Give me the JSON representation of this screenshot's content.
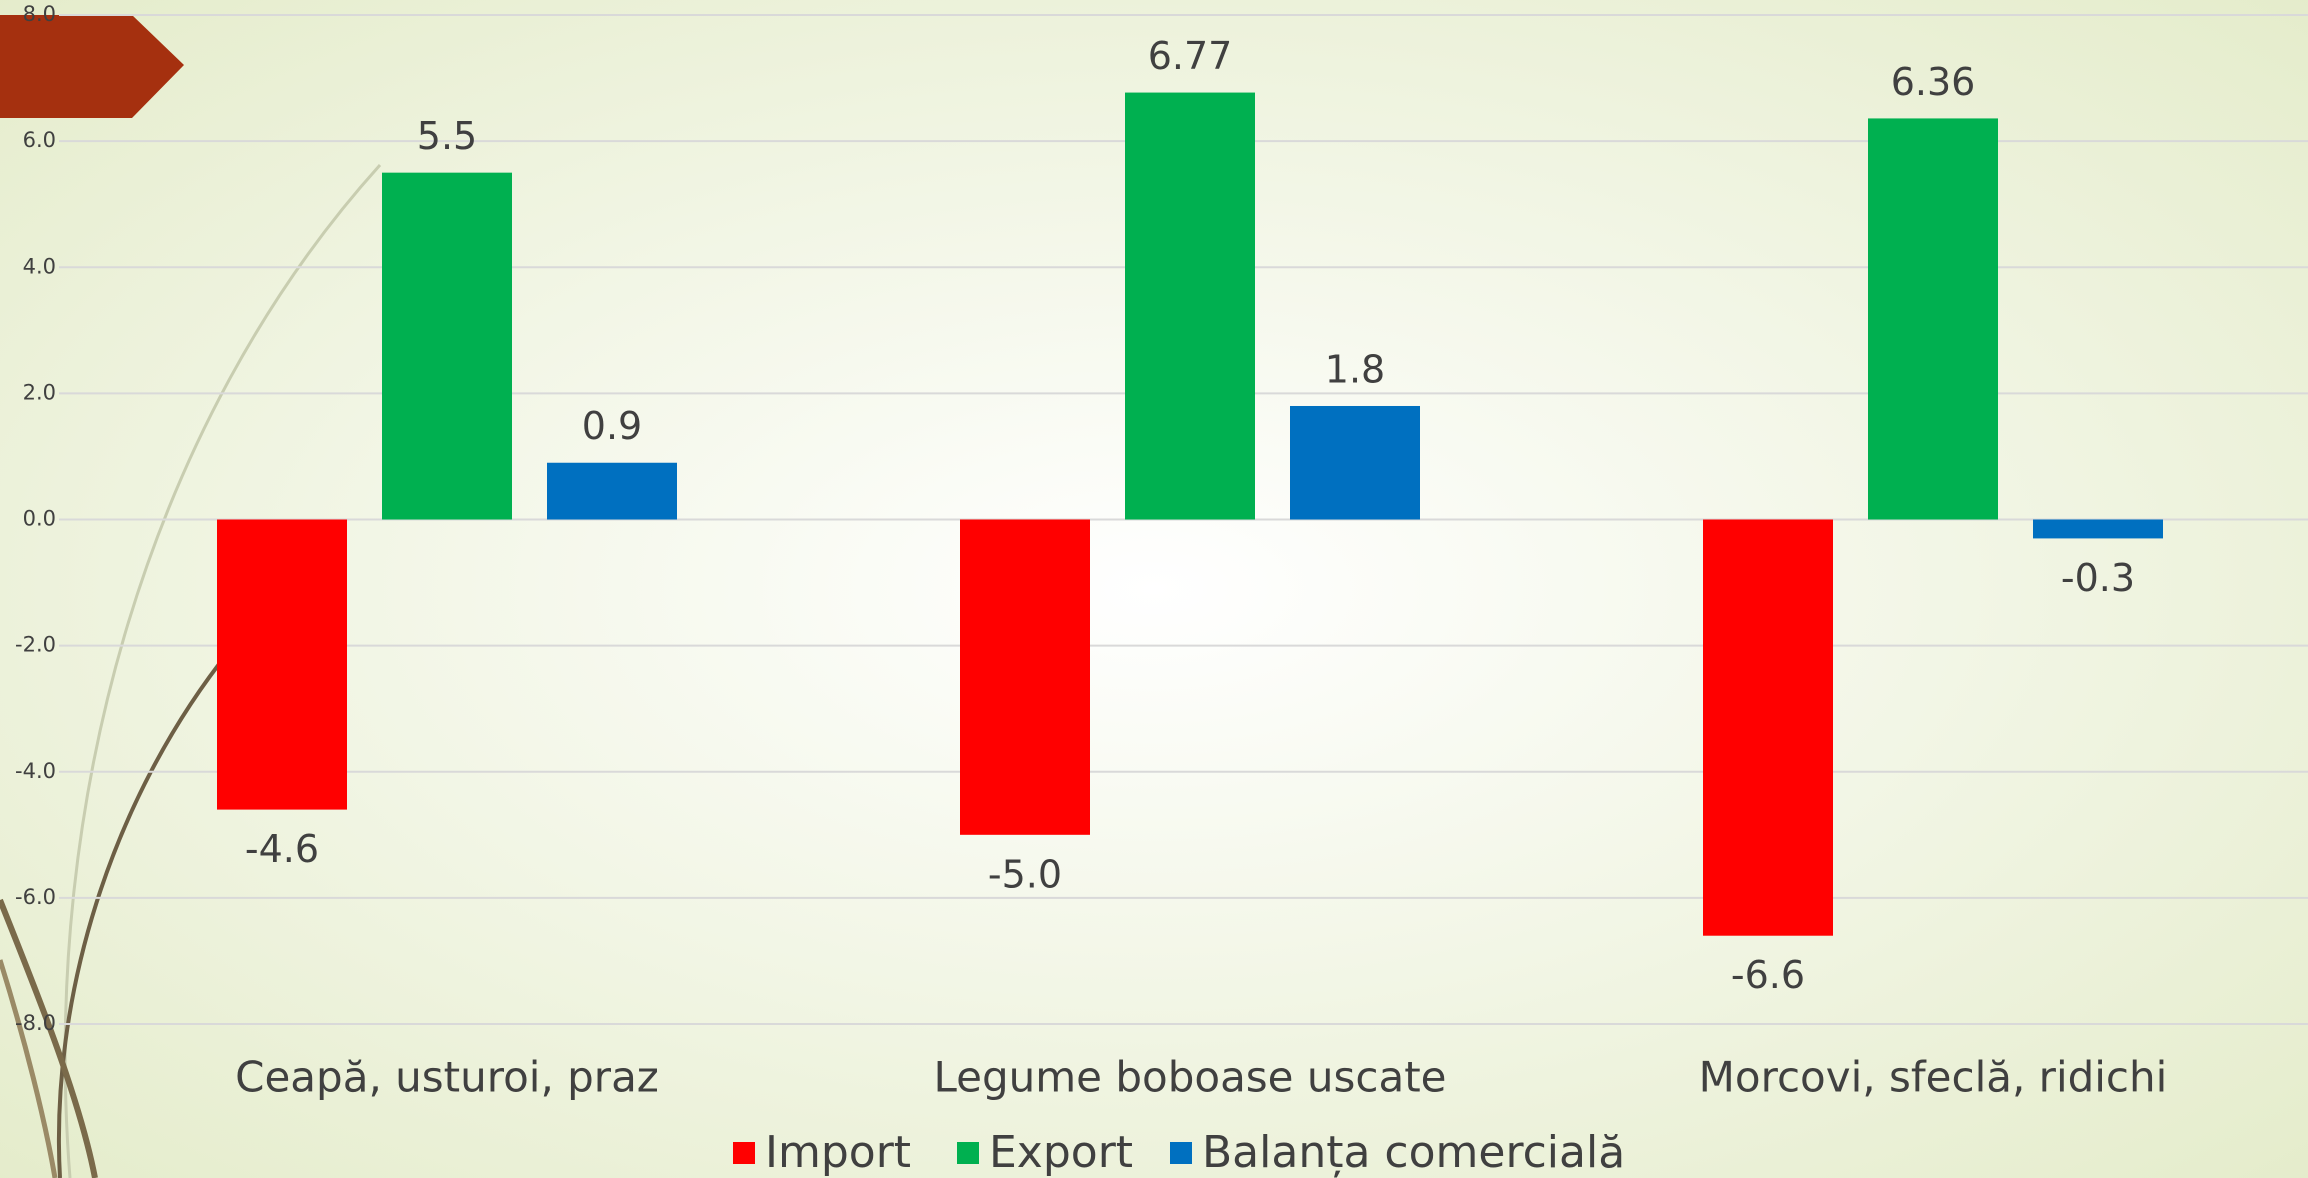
{
  "chart_data": {
    "type": "bar",
    "categories": [
      "Ceapă, usturoi, praz",
      "Legume boboase uscate",
      "Morcovi, sfeclă, ridichi"
    ],
    "series": [
      {
        "name": "Import",
        "color": "#ff0000",
        "values": [
          -4.6,
          -5.0,
          -6.6
        ],
        "value_labels": [
          "-4.6",
          "-5.0",
          "-6.6"
        ]
      },
      {
        "name": "Export",
        "color": "#00b050",
        "values": [
          5.5,
          6.77,
          6.36
        ]
      },
      {
        "name": "Balanța comercială",
        "color": "#0070c0",
        "values": [
          0.9,
          1.8,
          -0.3
        ]
      }
    ],
    "ylim": [
      -8,
      8
    ],
    "yticks": [
      {
        "value": -8,
        "label": "-8.0"
      },
      {
        "value": -6,
        "label": "-6.0"
      },
      {
        "value": -4,
        "label": "-4.0"
      },
      {
        "value": -2,
        "label": "-2.0"
      },
      {
        "value": 0,
        "label": "0.0"
      },
      {
        "value": 2,
        "label": "2.0"
      },
      {
        "value": 4,
        "label": "4.0"
      },
      {
        "value": 6,
        "label": "6.0"
      },
      {
        "value": 8,
        "label": "8.0"
      }
    ],
    "grid": true,
    "legend": "bottom"
  }
}
